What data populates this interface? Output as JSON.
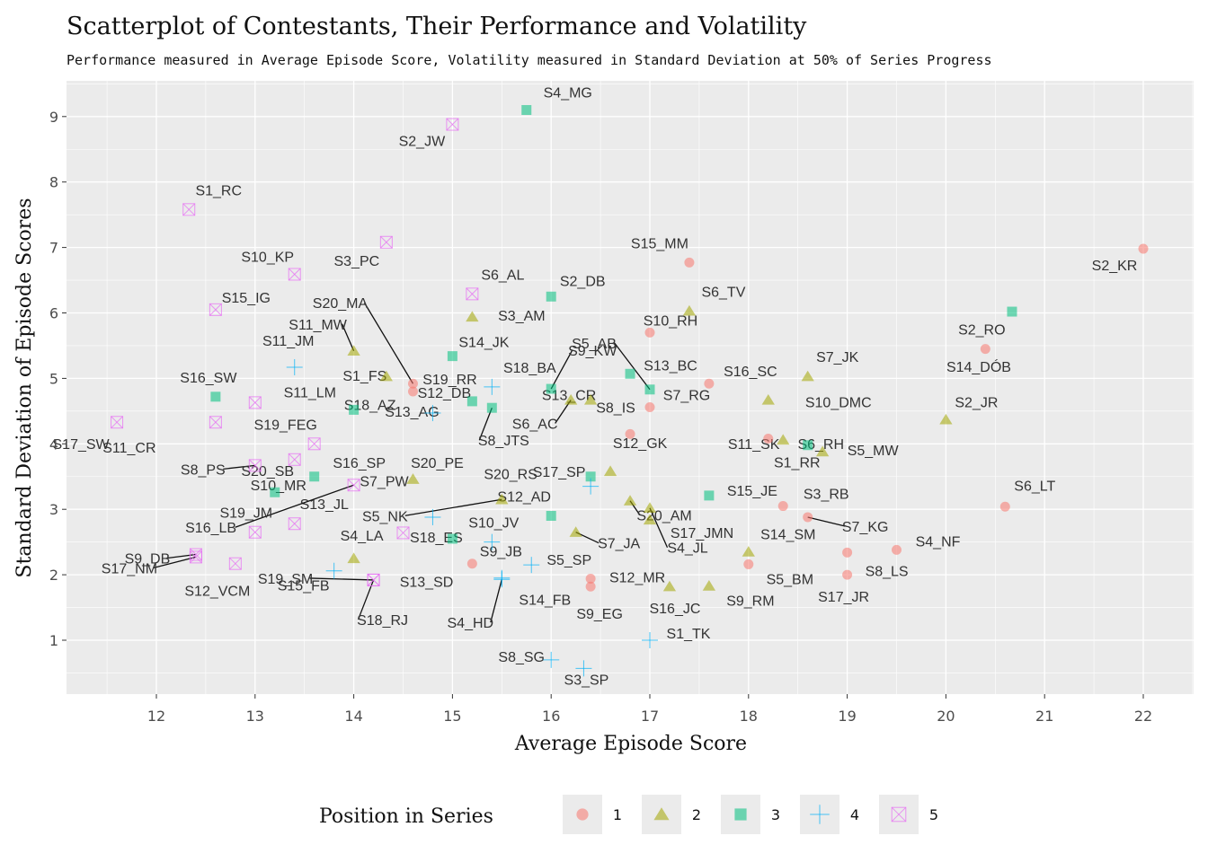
{
  "colors": {
    "panel": "#ebebeb",
    "grid": "#ffffff",
    "pos1": "#f8766d",
    "pos2": "#a3a500",
    "pos3": "#00bf7d",
    "pos4": "#00b0f6",
    "pos5": "#e76bf3"
  },
  "chart_data": {
    "type": "scatter",
    "title": "Scatterplot of Contestants, Their Performance and Volatility",
    "subtitle": "Performance measured in Average Episode Score, Volatility measured in Standard Deviation at 50% of Series Progress",
    "xlabel": "Average Episode Score",
    "ylabel": "Standard Deviation of Episode Scores",
    "xlim": [
      11.1,
      22.5
    ],
    "ylim": [
      0.2,
      9.5
    ],
    "x_ticks": [
      "12",
      "13",
      "14",
      "15",
      "16",
      "17",
      "18",
      "19",
      "20",
      "21",
      "22"
    ],
    "y_ticks": [
      "1",
      "2",
      "3",
      "4",
      "5",
      "6",
      "7",
      "8",
      "9"
    ],
    "grid": true,
    "legend": {
      "title": "Position in Series",
      "placement": "bottom",
      "entries": [
        "1",
        "2",
        "3",
        "4",
        "5"
      ]
    },
    "points": [
      {
        "label": "S2_KR",
        "x": 22.0,
        "y": 6.98,
        "pos": 1
      },
      {
        "label": "S6_LT",
        "x": 20.6,
        "y": 3.04,
        "pos": 1
      },
      {
        "label": "S2_RO",
        "x": 20.4,
        "y": 5.45,
        "pos": 1
      },
      {
        "label": "S4_NF",
        "x": 19.5,
        "y": 2.38,
        "pos": 1
      },
      {
        "label": "S8_LS",
        "x": 19.0,
        "y": 2.34,
        "pos": 1
      },
      {
        "label": "S17_JR",
        "x": 19.0,
        "y": 2.0,
        "pos": 1
      },
      {
        "label": "S3_RB",
        "x": 18.35,
        "y": 3.05,
        "pos": 1
      },
      {
        "label": "S7_KG",
        "x": 18.6,
        "y": 2.88,
        "pos": 1
      },
      {
        "label": "S5_BM",
        "x": 18.0,
        "y": 2.16,
        "pos": 1
      },
      {
        "label": "S1_RR",
        "x": 18.2,
        "y": 4.08,
        "pos": 1
      },
      {
        "label": "S16_SC",
        "x": 17.6,
        "y": 4.92,
        "pos": 1
      },
      {
        "label": "S15_MM",
        "x": 17.4,
        "y": 6.77,
        "pos": 1
      },
      {
        "label": "S10_RH",
        "x": 17.0,
        "y": 5.7,
        "pos": 1
      },
      {
        "label": "S7_RG",
        "x": 17.0,
        "y": 4.56,
        "pos": 1
      },
      {
        "label": "S8_IS",
        "x": 16.8,
        "y": 4.15,
        "pos": 1
      },
      {
        "label": "S12_MR",
        "x": 16.4,
        "y": 1.94,
        "pos": 1
      },
      {
        "label": "S9_EG",
        "x": 16.4,
        "y": 1.82,
        "pos": 1
      },
      {
        "label": "S9_JB",
        "x": 15.2,
        "y": 2.17,
        "pos": 1
      },
      {
        "label": "S19_RR",
        "x": 14.6,
        "y": 4.8,
        "pos": 1
      },
      {
        "label": "S20_MA",
        "x": 14.6,
        "y": 4.92,
        "pos": 1
      },
      {
        "label": "S2_JR",
        "x": 20.0,
        "y": 4.37,
        "pos": 2
      },
      {
        "label": "S5_MW",
        "x": 18.75,
        "y": 3.88,
        "pos": 2
      },
      {
        "label": "S7_JK",
        "x": 18.6,
        "y": 5.03,
        "pos": 2
      },
      {
        "label": "S6_RH",
        "x": 18.35,
        "y": 4.06,
        "pos": 2
      },
      {
        "label": "S10_DMC",
        "x": 18.2,
        "y": 4.67,
        "pos": 2
      },
      {
        "label": "S14_SM",
        "x": 18.0,
        "y": 2.35,
        "pos": 2
      },
      {
        "label": "S9_RM",
        "x": 17.6,
        "y": 1.83,
        "pos": 2
      },
      {
        "label": "S16_JC",
        "x": 17.2,
        "y": 1.82,
        "pos": 2
      },
      {
        "label": "S6_TV",
        "x": 17.4,
        "y": 6.03,
        "pos": 2
      },
      {
        "label": "S17_JMN",
        "x": 17.0,
        "y": 2.84,
        "pos": 2
      },
      {
        "label": "S4_JL",
        "x": 17.0,
        "y": 3.02,
        "pos": 2
      },
      {
        "label": "S20_AM",
        "x": 16.8,
        "y": 3.13,
        "pos": 2
      },
      {
        "label": "S12_GK",
        "x": 16.6,
        "y": 3.58,
        "pos": 2
      },
      {
        "label": "S13_CR",
        "x": 16.4,
        "y": 4.67,
        "pos": 2
      },
      {
        "label": "S6_AC",
        "x": 16.2,
        "y": 4.67,
        "pos": 2
      },
      {
        "label": "S7_JA",
        "x": 16.25,
        "y": 2.65,
        "pos": 2
      },
      {
        "label": "S5_NK",
        "x": 15.5,
        "y": 3.15,
        "pos": 2
      },
      {
        "label": "S3_AM",
        "x": 15.2,
        "y": 5.94,
        "pos": 2
      },
      {
        "label": "S1_FS",
        "x": 14.33,
        "y": 5.03,
        "pos": 2
      },
      {
        "label": "S11_MW",
        "x": 14.0,
        "y": 5.42,
        "pos": 2
      },
      {
        "label": "S4_LA",
        "x": 14.0,
        "y": 2.25,
        "pos": 2
      },
      {
        "label": "S7_PW",
        "x": 14.6,
        "y": 3.46,
        "pos": 2
      },
      {
        "label": "S4_MG",
        "x": 15.75,
        "y": 9.1,
        "pos": 3
      },
      {
        "label": "S2_DB",
        "x": 16.0,
        "y": 6.25,
        "pos": 3
      },
      {
        "label": "S14_DÓB",
        "x": 20.67,
        "y": 6.02,
        "pos": 3
      },
      {
        "label": "S13_BC",
        "x": 16.8,
        "y": 5.07,
        "pos": 3
      },
      {
        "label": "S15_JE",
        "x": 17.6,
        "y": 3.21,
        "pos": 3
      },
      {
        "label": "S11_SK",
        "x": 18.6,
        "y": 3.98,
        "pos": 3
      },
      {
        "label": "S5_AB",
        "x": 17.0,
        "y": 4.83,
        "pos": 3
      },
      {
        "label": "S9_KW",
        "x": 16.0,
        "y": 4.84,
        "pos": 3
      },
      {
        "label": "S17_SP",
        "x": 16.4,
        "y": 3.5,
        "pos": 3
      },
      {
        "label": "S12_AD",
        "x": 16.0,
        "y": 2.9,
        "pos": 3
      },
      {
        "label": "S14_JK",
        "x": 15.0,
        "y": 5.34,
        "pos": 3
      },
      {
        "label": "S12_DB",
        "x": 15.2,
        "y": 4.65,
        "pos": 3
      },
      {
        "label": "S8_JTS",
        "x": 15.4,
        "y": 4.55,
        "pos": 3
      },
      {
        "label": "S18_ES",
        "x": 15.0,
        "y": 2.55,
        "pos": 3
      },
      {
        "label": "S18_AZ",
        "x": 14.0,
        "y": 4.52,
        "pos": 3
      },
      {
        "label": "S16_SW",
        "x": 12.6,
        "y": 4.72,
        "pos": 3
      },
      {
        "label": "S16_SP",
        "x": 13.6,
        "y": 3.5,
        "pos": 3
      },
      {
        "label": "S10_MR",
        "x": 13.2,
        "y": 3.26,
        "pos": 3
      },
      {
        "label": "S1_TK",
        "x": 17.0,
        "y": 1.0,
        "pos": 4
      },
      {
        "label": "S3_SP",
        "x": 16.33,
        "y": 0.57,
        "pos": 4
      },
      {
        "label": "S8_SG",
        "x": 16.0,
        "y": 0.7,
        "pos": 4
      },
      {
        "label": "S5_SP",
        "x": 15.8,
        "y": 2.15,
        "pos": 4
      },
      {
        "label": "S14_FB",
        "x": 15.5,
        "y": 1.95,
        "pos": 4
      },
      {
        "label": "S4_HD",
        "x": 15.5,
        "y": 1.93,
        "pos": 4
      },
      {
        "label": "S20_RS",
        "x": 16.4,
        "y": 3.35,
        "pos": 4
      },
      {
        "label": "S18_BA",
        "x": 15.4,
        "y": 4.87,
        "pos": 4
      },
      {
        "label": "S13_AG",
        "x": 14.8,
        "y": 4.47,
        "pos": 4
      },
      {
        "label": "S20_PE",
        "x": 14.8,
        "y": 2.88,
        "pos": 4
      },
      {
        "label": "S10_JV",
        "x": 15.4,
        "y": 2.5,
        "pos": 4
      },
      {
        "label": "S11_JM",
        "x": 13.4,
        "y": 5.17,
        "pos": 4
      },
      {
        "label": "S15_FB",
        "x": 13.8,
        "y": 2.06,
        "pos": 4
      },
      {
        "label": "S1_RC",
        "x": 12.33,
        "y": 7.58,
        "pos": 5
      },
      {
        "label": "S2_JW",
        "x": 15.0,
        "y": 8.88,
        "pos": 5
      },
      {
        "label": "S3_PC",
        "x": 14.33,
        "y": 7.08,
        "pos": 5
      },
      {
        "label": "S10_KP",
        "x": 13.4,
        "y": 6.59,
        "pos": 5
      },
      {
        "label": "S6_AL",
        "x": 15.2,
        "y": 6.29,
        "pos": 5
      },
      {
        "label": "S15_IG",
        "x": 12.6,
        "y": 6.05,
        "pos": 5
      },
      {
        "label": "S11_LM",
        "x": 13.0,
        "y": 4.63,
        "pos": 5
      },
      {
        "label": "S17_SW",
        "x": 11.6,
        "y": 4.33,
        "pos": 5
      },
      {
        "label": "S11_CR",
        "x": 12.6,
        "y": 4.33,
        "pos": 5
      },
      {
        "label": "S19_FEG",
        "x": 13.6,
        "y": 4.0,
        "pos": 5
      },
      {
        "label": "S8_PS",
        "x": 13.0,
        "y": 3.67,
        "pos": 5
      },
      {
        "label": "S20_SB",
        "x": 13.4,
        "y": 3.76,
        "pos": 5
      },
      {
        "label": "S13_JL",
        "x": 13.4,
        "y": 2.78,
        "pos": 5
      },
      {
        "label": "S16_LB",
        "x": 14.0,
        "y": 3.37,
        "pos": 5
      },
      {
        "label": "S19_JM",
        "x": 13.0,
        "y": 2.65,
        "pos": 5
      },
      {
        "label": "S9_DB",
        "x": 12.4,
        "y": 2.31,
        "pos": 5
      },
      {
        "label": "S17_NM",
        "x": 12.4,
        "y": 2.27,
        "pos": 5
      },
      {
        "label": "S12_VCM",
        "x": 12.8,
        "y": 2.17,
        "pos": 5
      },
      {
        "label": "S13_SD",
        "x": 14.5,
        "y": 2.64,
        "pos": 5
      },
      {
        "label": "S18_RJ",
        "x": 14.2,
        "y": 1.92,
        "pos": 5
      },
      {
        "label": "S19_SM",
        "x": 14.2,
        "y": 1.92,
        "pos": 5
      }
    ]
  }
}
